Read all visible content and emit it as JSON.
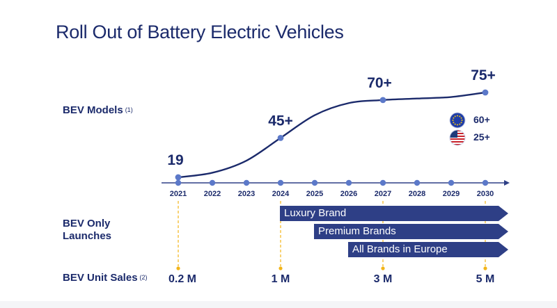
{
  "title": "Roll Out of Battery Electric Vehicles",
  "labels": {
    "bev_models": "BEV Models",
    "bev_models_note": "(1)",
    "bev_only_line1": "BEV Only",
    "bev_only_line2": "Launches",
    "unit_sales": "BEV Unit Sales",
    "unit_sales_note": "(2)"
  },
  "chart_data": {
    "type": "line",
    "title": "BEV Models",
    "x": [
      2021,
      2022,
      2023,
      2024,
      2025,
      2026,
      2027,
      2028,
      2029,
      2030
    ],
    "tick_labels": [
      "2021",
      "2022",
      "2023",
      "2024",
      "2025",
      "2026",
      "2027",
      "2028",
      "2029",
      "2030"
    ],
    "series": [
      {
        "name": "BEV Models",
        "points": [
          {
            "x": 2021,
            "y": 19,
            "label": "19"
          },
          {
            "x": 2024,
            "y": 45,
            "label": "45+"
          },
          {
            "x": 2027,
            "y": 70,
            "label": "70+"
          },
          {
            "x": 2030,
            "y": 75,
            "label": "75+"
          }
        ]
      }
    ],
    "curve_y": [
      19,
      22,
      30,
      45,
      60,
      68,
      70,
      71,
      72,
      75
    ],
    "ylim": [
      15,
      80
    ],
    "breakdown_2030": [
      {
        "region": "EU",
        "value": "60+",
        "flag": "eu-flag-icon"
      },
      {
        "region": "US",
        "value": "25+",
        "flag": "us-flag-icon"
      }
    ],
    "launches": [
      {
        "label": "Luxury Brand",
        "start": 2024
      },
      {
        "label": "Premium Brands",
        "start": 2025
      },
      {
        "label": "All Brands in Europe",
        "start": 2026
      }
    ],
    "unit_sales": [
      {
        "year": 2021,
        "label": "0.2 M"
      },
      {
        "year": 2024,
        "label": "1 M"
      },
      {
        "year": 2027,
        "label": "3 M"
      },
      {
        "year": 2030,
        "label": "5 M"
      }
    ]
  },
  "colors": {
    "navy": "#1b2a6b",
    "axis": "#2e3f86",
    "dot": "#5c79c9",
    "bar": "#2e3f86",
    "dash": "#f2b418"
  }
}
